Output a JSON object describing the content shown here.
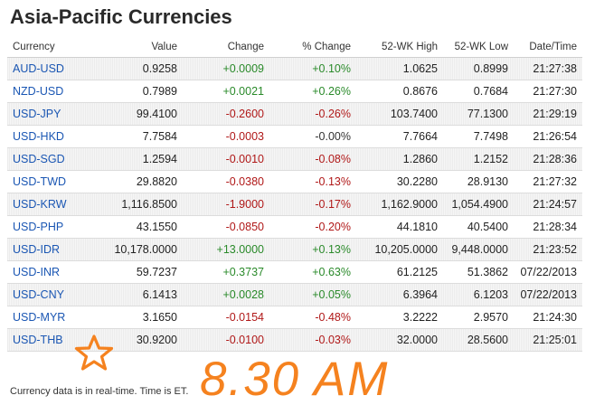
{
  "title": "Asia-Pacific Currencies",
  "columns": {
    "currency": "Currency",
    "value": "Value",
    "change": "Change",
    "pct_change": "% Change",
    "wk52_high": "52-WK High",
    "wk52_low": "52-WK Low",
    "datetime": "Date/Time"
  },
  "rows": [
    {
      "pair": "AUD-USD",
      "value": "0.9258",
      "change": "+0.0009",
      "pct": "+0.10%",
      "high": "1.0625",
      "low": "0.8999",
      "time": "21:27:38",
      "dir": "pos"
    },
    {
      "pair": "NZD-USD",
      "value": "0.7989",
      "change": "+0.0021",
      "pct": "+0.26%",
      "high": "0.8676",
      "low": "0.7684",
      "time": "21:27:30",
      "dir": "pos"
    },
    {
      "pair": "USD-JPY",
      "value": "99.4100",
      "change": "-0.2600",
      "pct": "-0.26%",
      "high": "103.7400",
      "low": "77.1300",
      "time": "21:29:19",
      "dir": "neg"
    },
    {
      "pair": "USD-HKD",
      "value": "7.7584",
      "change": "-0.0003",
      "pct": "-0.00%",
      "high": "7.7664",
      "low": "7.7498",
      "time": "21:26:54",
      "dir": "neg",
      "pct_dir": "neu"
    },
    {
      "pair": "USD-SGD",
      "value": "1.2594",
      "change": "-0.0010",
      "pct": "-0.08%",
      "high": "1.2860",
      "low": "1.2152",
      "time": "21:28:36",
      "dir": "neg"
    },
    {
      "pair": "USD-TWD",
      "value": "29.8820",
      "change": "-0.0380",
      "pct": "-0.13%",
      "high": "30.2280",
      "low": "28.9130",
      "time": "21:27:32",
      "dir": "neg"
    },
    {
      "pair": "USD-KRW",
      "value": "1,116.8500",
      "change": "-1.9000",
      "pct": "-0.17%",
      "high": "1,162.9000",
      "low": "1,054.4900",
      "time": "21:24:57",
      "dir": "neg"
    },
    {
      "pair": "USD-PHP",
      "value": "43.1550",
      "change": "-0.0850",
      "pct": "-0.20%",
      "high": "44.1810",
      "low": "40.5400",
      "time": "21:28:34",
      "dir": "neg"
    },
    {
      "pair": "USD-IDR",
      "value": "10,178.0000",
      "change": "+13.0000",
      "pct": "+0.13%",
      "high": "10,205.0000",
      "low": "9,448.0000",
      "time": "21:23:52",
      "dir": "pos"
    },
    {
      "pair": "USD-INR",
      "value": "59.7237",
      "change": "+0.3737",
      "pct": "+0.63%",
      "high": "61.2125",
      "low": "51.3862",
      "time": "07/22/2013",
      "dir": "pos"
    },
    {
      "pair": "USD-CNY",
      "value": "6.1413",
      "change": "+0.0028",
      "pct": "+0.05%",
      "high": "6.3964",
      "low": "6.1203",
      "time": "07/22/2013",
      "dir": "pos"
    },
    {
      "pair": "USD-MYR",
      "value": "3.1650",
      "change": "-0.0154",
      "pct": "-0.48%",
      "high": "3.2222",
      "low": "2.9570",
      "time": "21:24:30",
      "dir": "neg"
    },
    {
      "pair": "USD-THB",
      "value": "30.9200",
      "change": "-0.0100",
      "pct": "-0.03%",
      "high": "32.0000",
      "low": "28.5600",
      "time": "21:25:01",
      "dir": "neg"
    }
  ],
  "footnote": "Currency data is in real-time. Time is ET.",
  "annotation": {
    "time_text": "8.30 AM",
    "star_icon": "star-outline-icon",
    "accent_color": "#f5821f"
  },
  "colors": {
    "positive": "#2a8a2a",
    "negative": "#b01818",
    "link": "#1a56b3"
  }
}
